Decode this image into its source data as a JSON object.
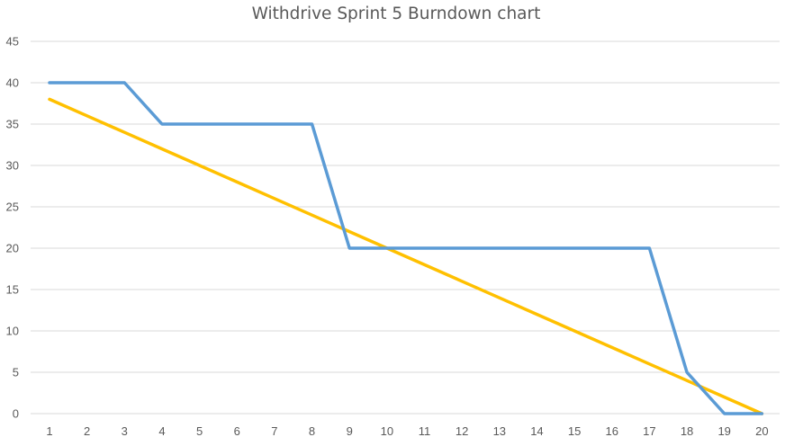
{
  "chart_data": {
    "type": "line",
    "title": "Withdrive Sprint 5 Burndown chart",
    "xlabel": "",
    "ylabel": "",
    "x": [
      1,
      2,
      3,
      4,
      5,
      6,
      7,
      8,
      9,
      10,
      11,
      12,
      13,
      14,
      15,
      16,
      17,
      18,
      19,
      20
    ],
    "ylim": [
      0,
      45
    ],
    "yticks": [
      0,
      5,
      10,
      15,
      20,
      25,
      30,
      35,
      40,
      45
    ],
    "grid": true,
    "legend": "none",
    "series": [
      {
        "color": "#5b9bd5",
        "values": [
          40,
          40,
          40,
          35,
          35,
          35,
          35,
          35,
          20,
          20,
          20,
          20,
          20,
          20,
          20,
          20,
          20,
          5,
          0,
          0
        ]
      },
      {
        "color": "#ffc000",
        "values": [
          38,
          36,
          34,
          32,
          30,
          28,
          26,
          24,
          22,
          20,
          18,
          16,
          14,
          12,
          10,
          8,
          6,
          4,
          2,
          0
        ]
      }
    ]
  }
}
